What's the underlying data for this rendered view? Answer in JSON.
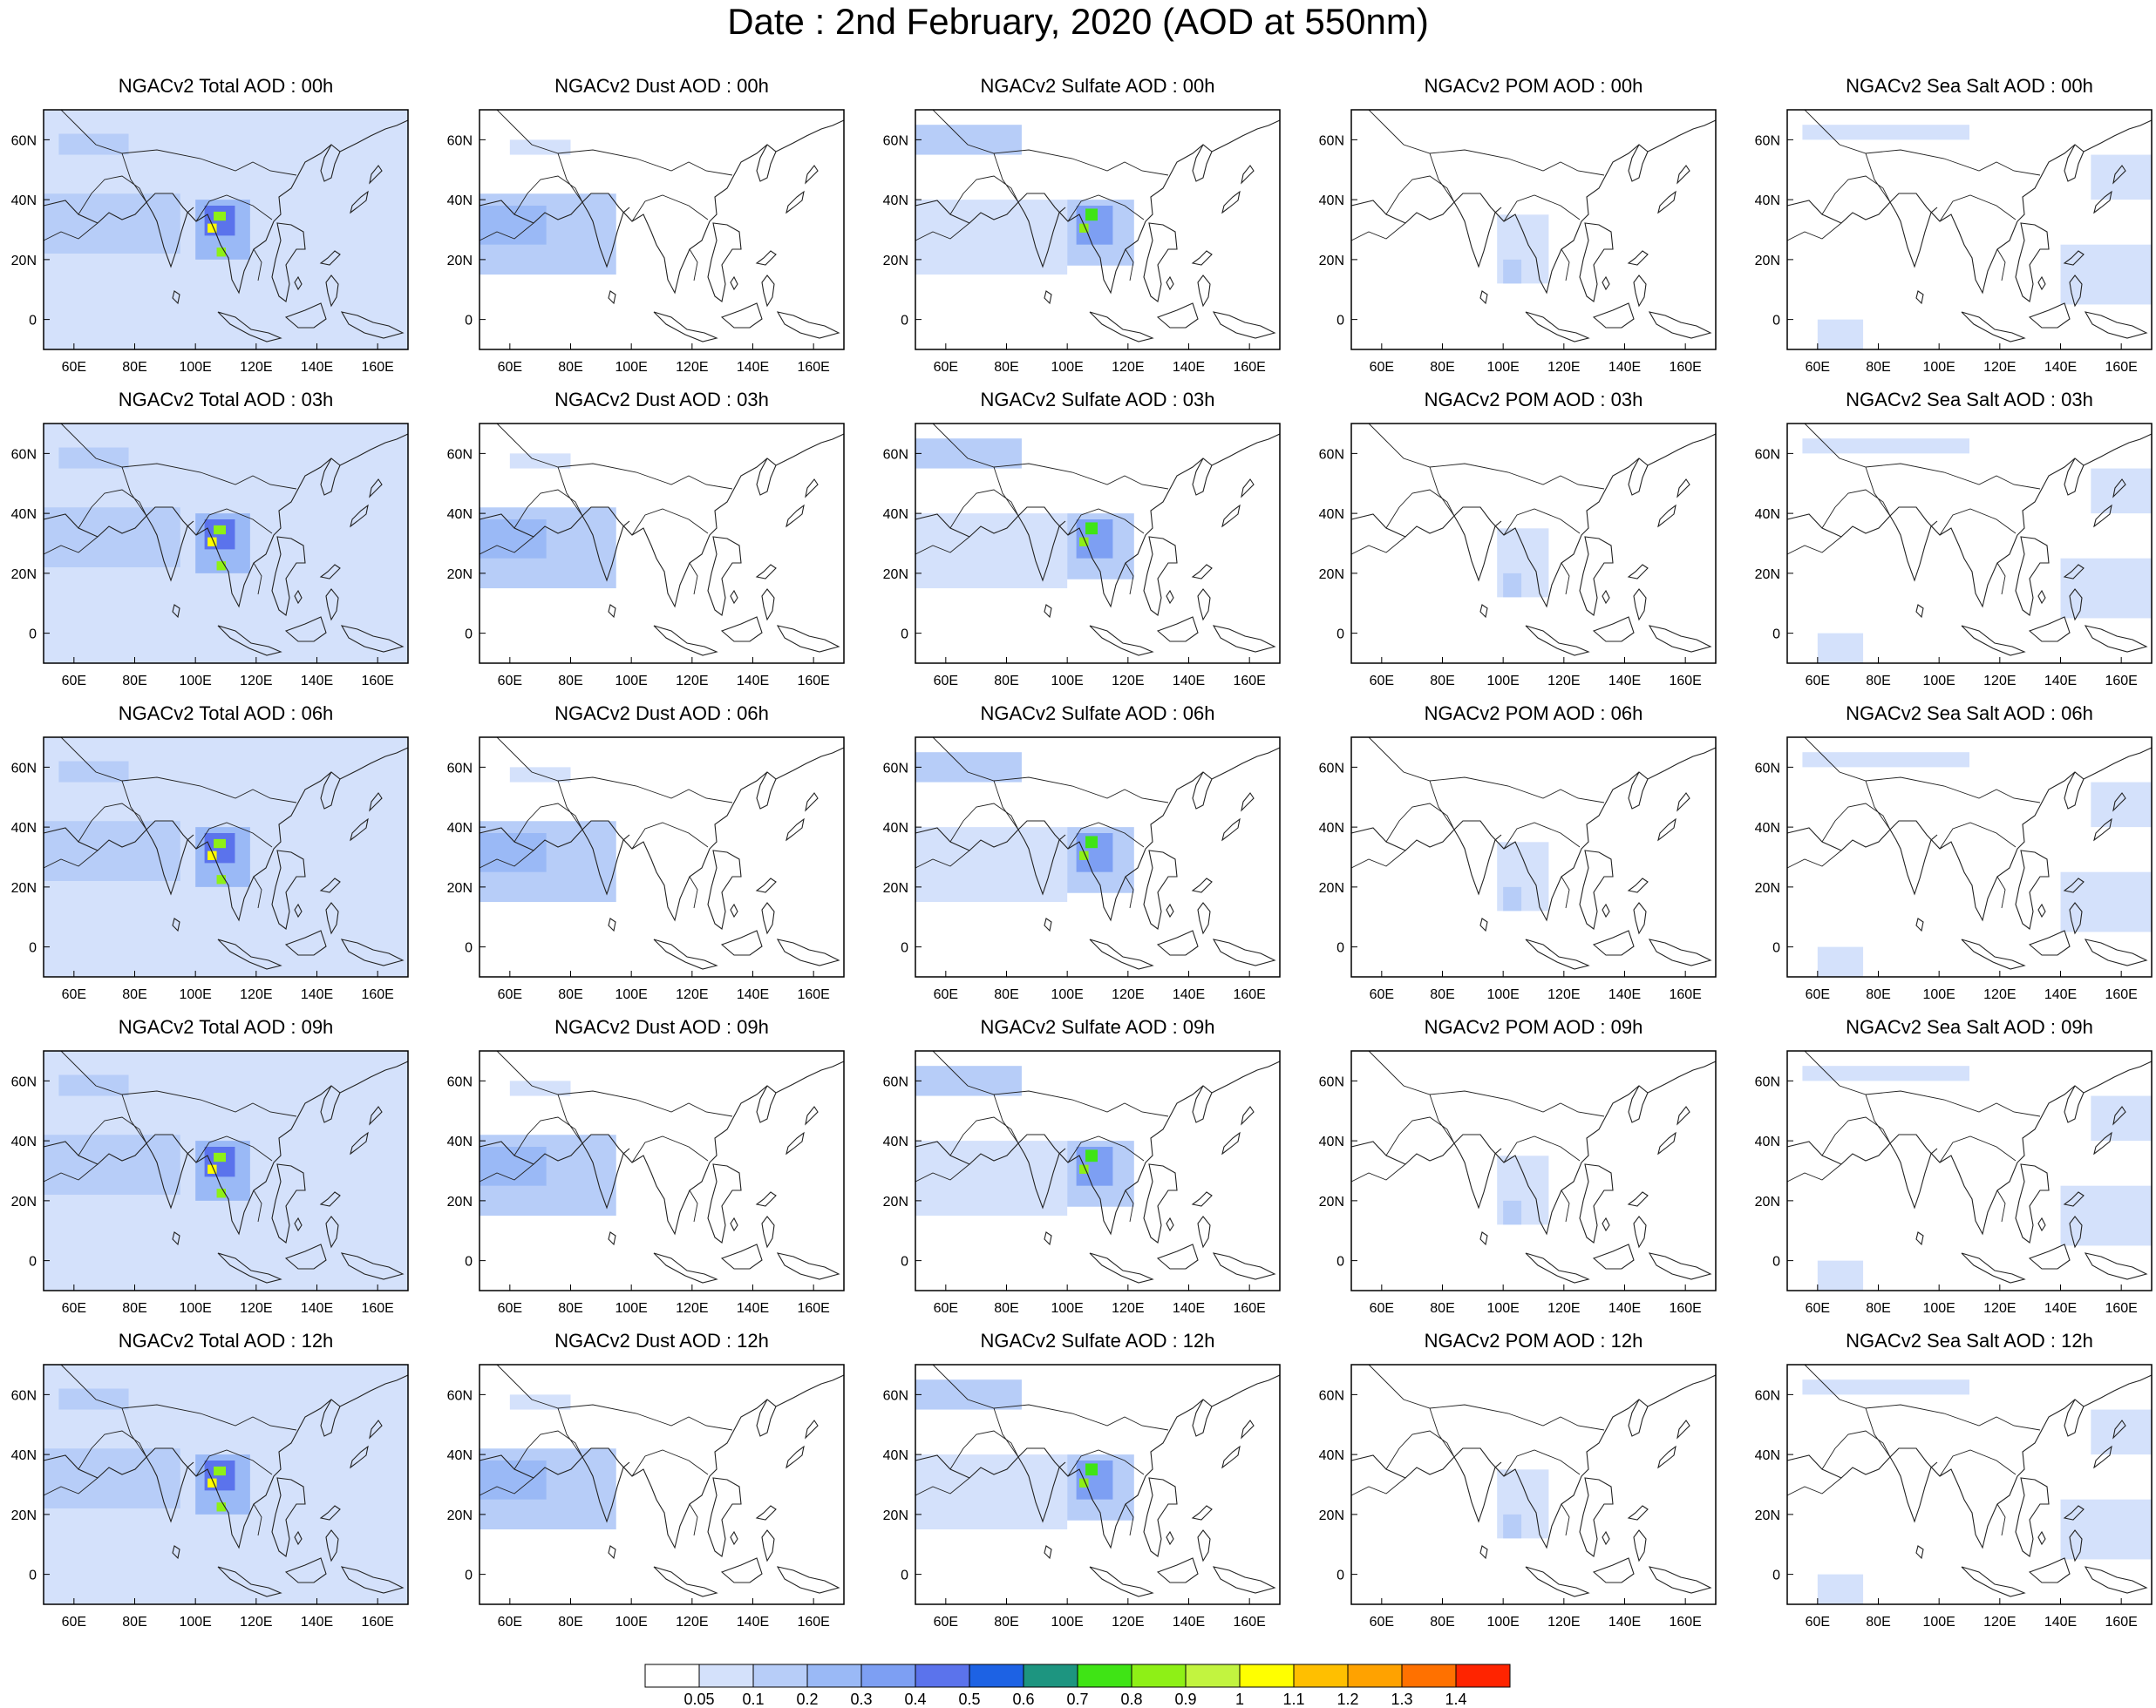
{
  "title": "Date : 2nd February, 2020 (AOD at 550nm)",
  "species_keys": [
    "total",
    "dust",
    "sulfate",
    "pom",
    "seasalt"
  ],
  "panel_titles": [
    [
      "NGACv2 Total AOD : 00h",
      "NGACv2 Dust AOD : 00h",
      "NGACv2 Sulfate AOD : 00h",
      "NGACv2 POM AOD : 00h",
      "NGACv2 Sea Salt AOD : 00h"
    ],
    [
      "NGACv2 Total AOD : 03h",
      "NGACv2 Dust AOD : 03h",
      "NGACv2 Sulfate AOD : 03h",
      "NGACv2 POM AOD : 03h",
      "NGACv2 Sea Salt AOD : 03h"
    ],
    [
      "NGACv2 Total AOD : 06h",
      "NGACv2 Dust AOD : 06h",
      "NGACv2 Sulfate AOD : 06h",
      "NGACv2 POM AOD : 06h",
      "NGACv2 Sea Salt AOD : 06h"
    ],
    [
      "NGACv2 Total AOD : 09h",
      "NGACv2 Dust AOD : 09h",
      "NGACv2 Sulfate AOD : 09h",
      "NGACv2 POM AOD : 09h",
      "NGACv2 Sea Salt  AOD : 09h"
    ],
    [
      "NGACv2 Total AOD  : 12h",
      "NGACv2 Dust AOD : 12h",
      "NGACv2 Sulfate AOD : 12h",
      "NGACv2 POM  AOD : 12h",
      "NGACv2 Sea Salt  AOD : 12h"
    ]
  ],
  "map_extent": {
    "lon": [
      50,
      170
    ],
    "lat": [
      -10,
      70
    ]
  },
  "lon_ticks": [
    {
      "value": 60,
      "label": "60E"
    },
    {
      "value": 80,
      "label": "80E"
    },
    {
      "value": 100,
      "label": "100E"
    },
    {
      "value": 120,
      "label": "120E"
    },
    {
      "value": 140,
      "label": "140E"
    },
    {
      "value": 160,
      "label": "160E"
    }
  ],
  "lat_ticks": [
    {
      "value": 0,
      "label": "0"
    },
    {
      "value": 20,
      "label": "20N"
    },
    {
      "value": 40,
      "label": "40N"
    },
    {
      "value": 60,
      "label": "60N"
    }
  ],
  "colorbar": {
    "colors": [
      "#ffffff",
      "#d4e1fb",
      "#b7cdf8",
      "#9ab9f6",
      "#7d9ff3",
      "#5b73ec",
      "#1d62e4",
      "#1d9580",
      "#3fe415",
      "#8ef016",
      "#c2f43f",
      "#ffff00",
      "#ffbf00",
      "#ffa200",
      "#ff7100",
      "#ff2400"
    ],
    "labels": [
      "0.05",
      "0.1",
      "0.2",
      "0.3",
      "0.4",
      "0.5",
      "0.6",
      "0.7",
      "0.8",
      "0.9",
      "1",
      "1.1",
      "1.2",
      "1.3",
      "1.4"
    ]
  },
  "aod_patches": {
    "total": [
      {
        "lon": [
          50,
          170
        ],
        "lat": [
          -10,
          70
        ],
        "level": 1
      },
      {
        "lon": [
          50,
          95
        ],
        "lat": [
          22,
          42
        ],
        "level": 2
      },
      {
        "lon": [
          55,
          78
        ],
        "lat": [
          55,
          62
        ],
        "level": 2
      },
      {
        "lon": [
          100,
          118
        ],
        "lat": [
          20,
          40
        ],
        "level": 3
      },
      {
        "lon": [
          103,
          113
        ],
        "lat": [
          28,
          38
        ],
        "level": 5
      },
      {
        "lon": [
          106,
          110
        ],
        "lat": [
          33,
          36
        ],
        "level": 9
      },
      {
        "lon": [
          104,
          107
        ],
        "lat": [
          29,
          32
        ],
        "level": 11
      },
      {
        "lon": [
          107,
          110
        ],
        "lat": [
          21,
          24
        ],
        "level": 9
      }
    ],
    "dust": [
      {
        "lon": [
          50,
          95
        ],
        "lat": [
          15,
          42
        ],
        "level": 2
      },
      {
        "lon": [
          50,
          72
        ],
        "lat": [
          25,
          38
        ],
        "level": 3
      },
      {
        "lon": [
          60,
          80
        ],
        "lat": [
          55,
          60
        ],
        "level": 1
      }
    ],
    "sulfate": [
      {
        "lon": [
          50,
          100
        ],
        "lat": [
          15,
          40
        ],
        "level": 1
      },
      {
        "lon": [
          50,
          85
        ],
        "lat": [
          55,
          65
        ],
        "level": 2
      },
      {
        "lon": [
          100,
          122
        ],
        "lat": [
          18,
          40
        ],
        "level": 2
      },
      {
        "lon": [
          103,
          115
        ],
        "lat": [
          25,
          38
        ],
        "level": 4
      },
      {
        "lon": [
          106,
          110
        ],
        "lat": [
          33,
          37
        ],
        "level": 8
      },
      {
        "lon": [
          104,
          107
        ],
        "lat": [
          29,
          32
        ],
        "level": 9
      }
    ],
    "pom": [
      {
        "lon": [
          98,
          115
        ],
        "lat": [
          12,
          35
        ],
        "level": 1
      },
      {
        "lon": [
          100,
          106
        ],
        "lat": [
          12,
          20
        ],
        "level": 2
      }
    ],
    "seasalt": [
      {
        "lon": [
          55,
          110
        ],
        "lat": [
          60,
          65
        ],
        "level": 1
      },
      {
        "lon": [
          140,
          170
        ],
        "lat": [
          5,
          25
        ],
        "level": 1
      },
      {
        "lon": [
          60,
          75
        ],
        "lat": [
          -10,
          0
        ],
        "level": 1
      },
      {
        "lon": [
          150,
          170
        ],
        "lat": [
          40,
          55
        ],
        "level": 1
      }
    ]
  }
}
